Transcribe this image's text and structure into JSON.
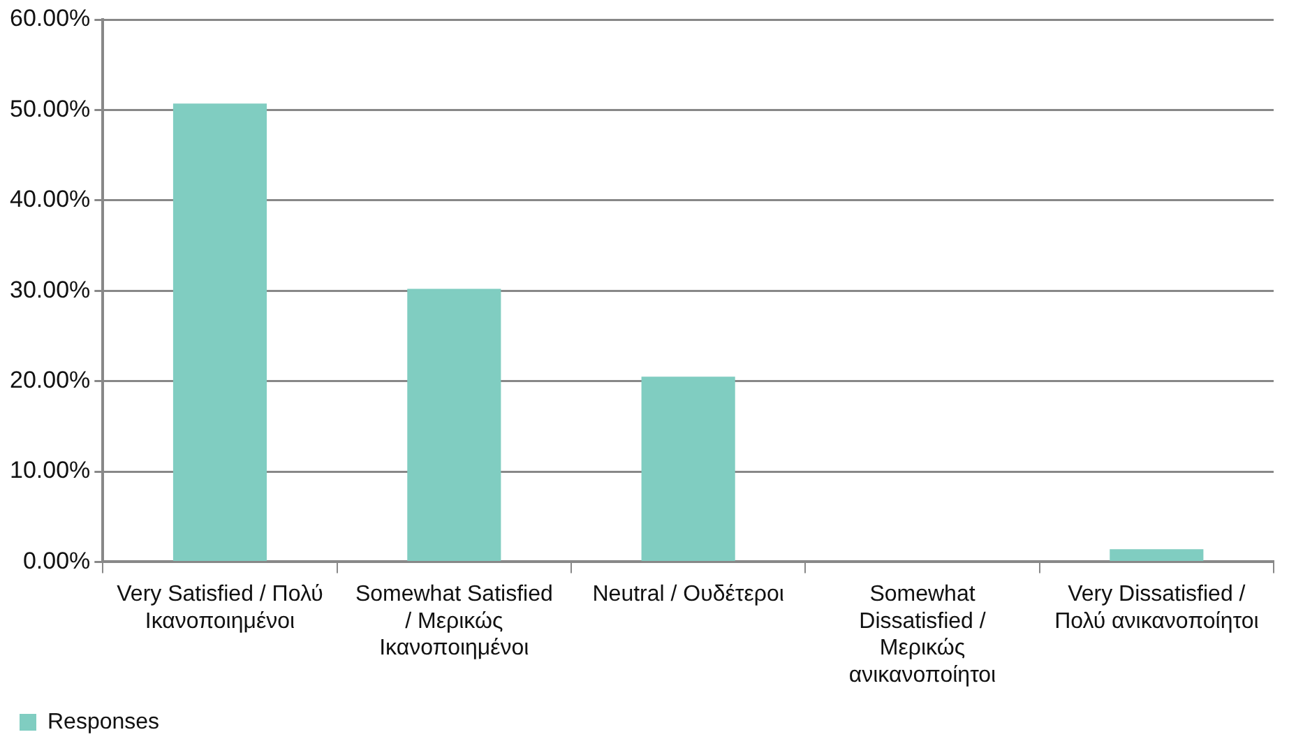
{
  "chart_data": {
    "type": "bar",
    "categories": [
      "Very Satisfied / Πολύ Ικανοποιημένοι",
      "Somewhat Satisfied / Μερικώς Ικανοποιημένοι",
      "Neutral / Ουδέτεροι",
      "Somewhat Dissatisfied / Μερικώς ανικανοποίητοι",
      "Very Dissatisfied / Πολύ ανικανοποίητοι"
    ],
    "series": [
      {
        "name": "Responses",
        "color": "#80cdc1",
        "values": [
          50.7,
          30.2,
          20.5,
          0,
          1.4
        ]
      }
    ],
    "ylim": [
      0,
      60
    ],
    "yticks": [
      {
        "value": 0,
        "label": "0.00%"
      },
      {
        "value": 10,
        "label": "10.00%"
      },
      {
        "value": 20,
        "label": "20.00%"
      },
      {
        "value": 30,
        "label": "30.00%"
      },
      {
        "value": 40,
        "label": "40.00%"
      },
      {
        "value": 50,
        "label": "50.00%"
      },
      {
        "value": 60,
        "label": "60.00%"
      }
    ],
    "grid": "y",
    "legend": "bottom left"
  }
}
